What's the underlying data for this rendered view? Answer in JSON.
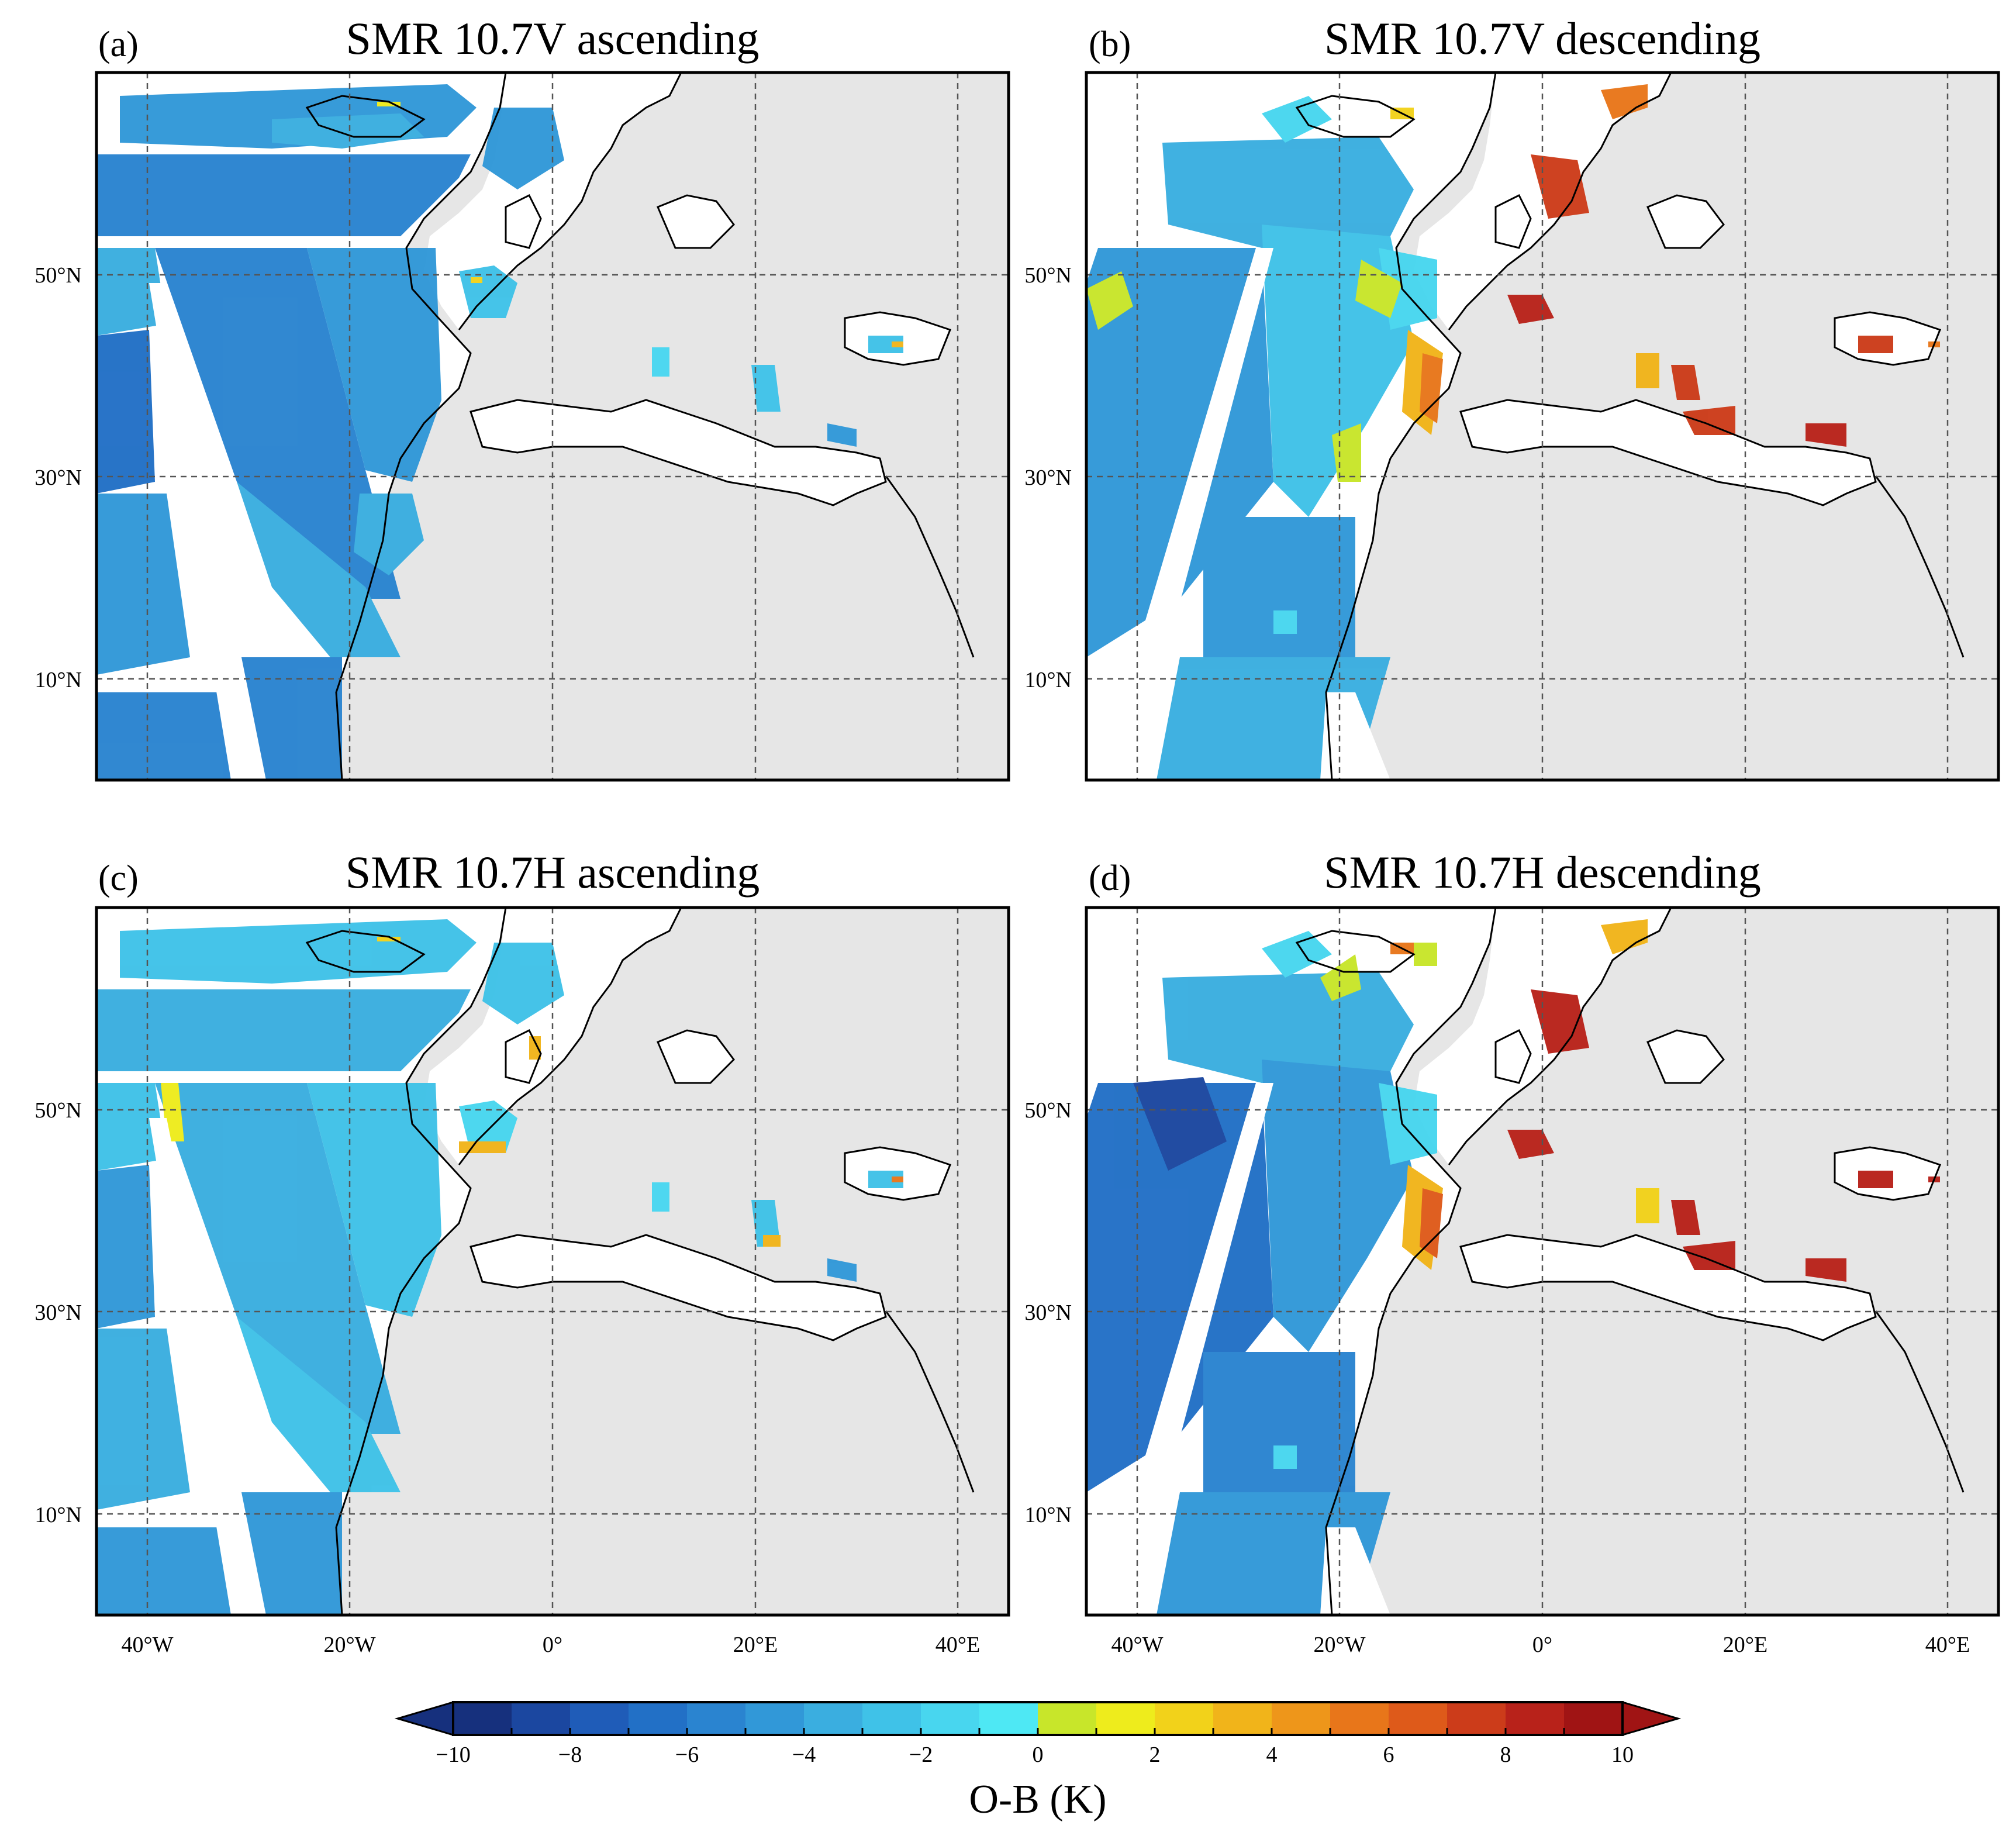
{
  "panels": [
    {
      "letter": "(a)",
      "title": "SMR 10.7V ascending"
    },
    {
      "letter": "(b)",
      "title": "SMR 10.7V descending"
    },
    {
      "letter": "(c)",
      "title": "SMR 10.7H ascending"
    },
    {
      "letter": "(d)",
      "title": "SMR 10.7H descending"
    }
  ],
  "map": {
    "lon_range": [
      -45,
      45
    ],
    "lat_range": [
      0,
      70
    ],
    "lon_ticks": [
      -40,
      -20,
      0,
      20,
      40
    ],
    "lon_tick_labels": [
      "40°W",
      "20°W",
      "0°",
      "20°E",
      "40°E"
    ],
    "lat_ticks": [
      10,
      30,
      50
    ],
    "lat_tick_labels": [
      "10°N",
      "30°N",
      "50°N"
    ],
    "land_color": "#e6e6e6",
    "grid": "dashed"
  },
  "colorbar": {
    "label": "O-B (K)",
    "min": -10,
    "max": 10,
    "step": 1,
    "tick_values": [
      -10,
      -8,
      -6,
      -4,
      -2,
      0,
      2,
      4,
      6,
      8,
      10
    ],
    "tick_labels": [
      "−10",
      "−8",
      "−6",
      "−4",
      "−2",
      "0",
      "2",
      "4",
      "6",
      "8",
      "10"
    ],
    "colors": [
      "#16307d",
      "#1b47a0",
      "#1f5cb8",
      "#2270c6",
      "#2a84d0",
      "#3198d8",
      "#3aaee0",
      "#3fc2e8",
      "#48d6ef",
      "#4ee8f4",
      "#c8e62a",
      "#eeec1c",
      "#f2d21a",
      "#f1b41a",
      "#ee961a",
      "#e8761a",
      "#de5a1a",
      "#cc3c1a",
      "#b8221a",
      "#a01414"
    ]
  }
}
